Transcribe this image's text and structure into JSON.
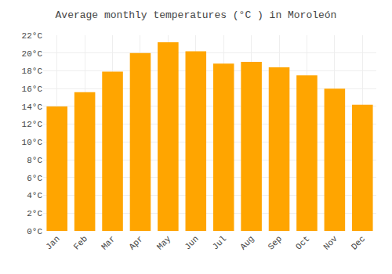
{
  "chart_data": {
    "type": "bar",
    "title": "Average monthly temperatures (°C ) in Moroleón",
    "categories": [
      "Jan",
      "Feb",
      "Mar",
      "Apr",
      "May",
      "Jun",
      "Jul",
      "Aug",
      "Sep",
      "Oct",
      "Nov",
      "Dec"
    ],
    "values": [
      14.0,
      15.6,
      17.9,
      20.0,
      21.2,
      20.2,
      18.8,
      19.0,
      18.4,
      17.5,
      16.0,
      14.2
    ],
    "color": "#FFA500",
    "ylim": [
      0,
      22
    ],
    "yticks": [
      {
        "value": 0,
        "label": "0°C"
      },
      {
        "value": 2,
        "label": "2°C"
      },
      {
        "value": 4,
        "label": "4°C"
      },
      {
        "value": 6,
        "label": "6°C"
      },
      {
        "value": 8,
        "label": "8°C"
      },
      {
        "value": 10,
        "label": "10°C"
      },
      {
        "value": 12,
        "label": "12°C"
      },
      {
        "value": 14,
        "label": "14°C"
      },
      {
        "value": 16,
        "label": "16°C"
      },
      {
        "value": 18,
        "label": "18°C"
      },
      {
        "value": 20,
        "label": "20°C"
      },
      {
        "value": 22,
        "label": "22°C"
      }
    ],
    "grid": true
  }
}
